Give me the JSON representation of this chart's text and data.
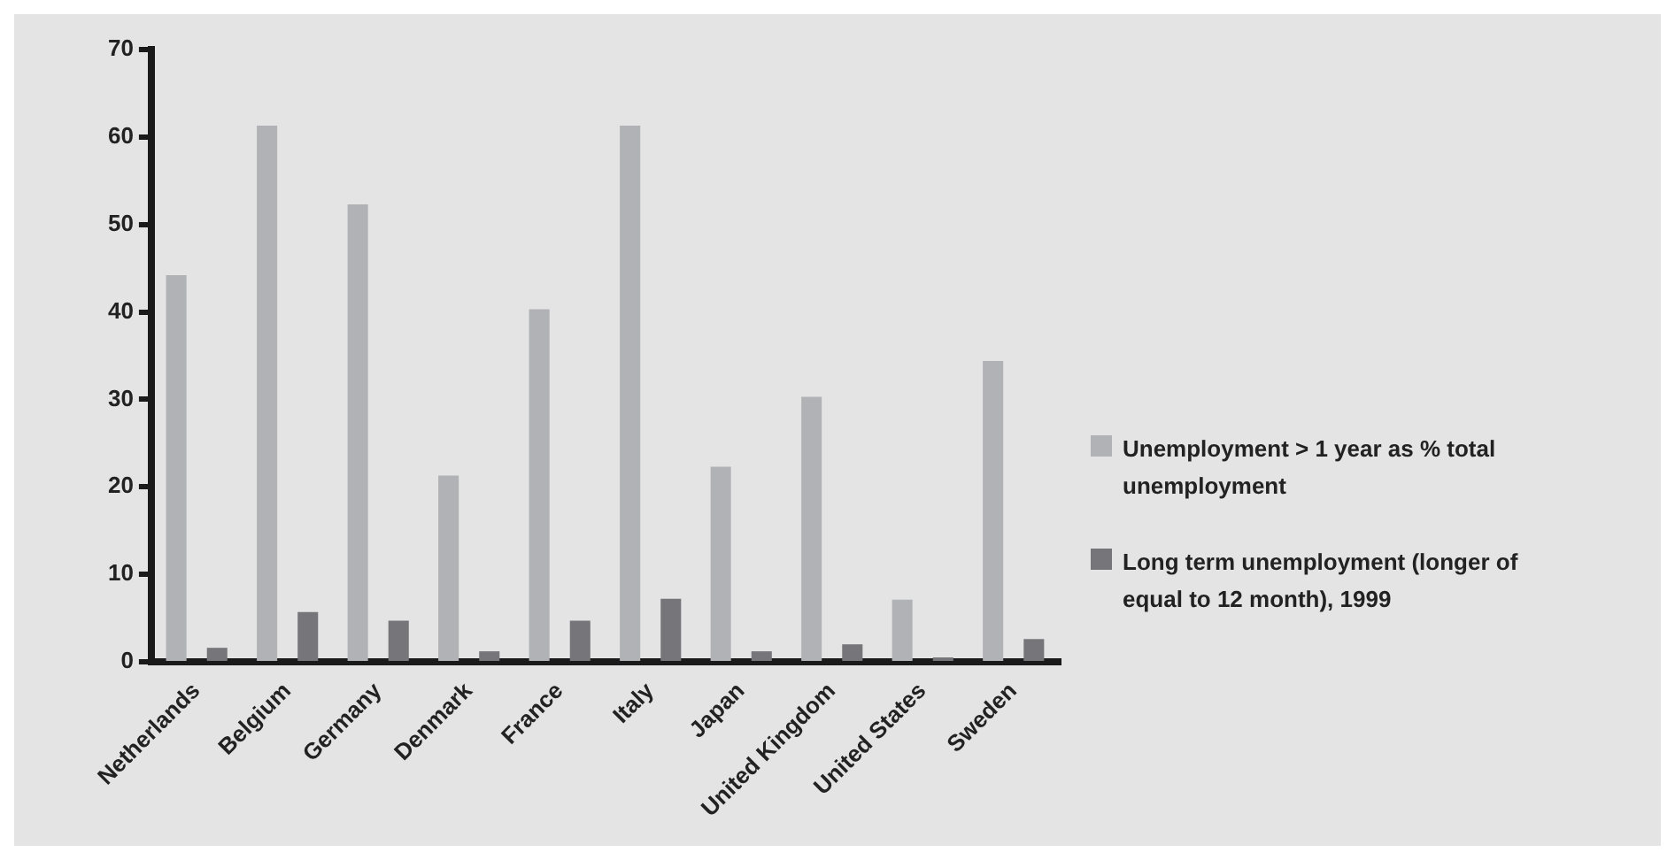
{
  "chart_data": {
    "type": "bar",
    "categories": [
      "Netherlands",
      "Belgium",
      "Germany",
      "Denmark",
      "France",
      "Italy",
      "Japan",
      "United Kingdom",
      "United States",
      "Sweden"
    ],
    "series": [
      {
        "name": "Unemployment > 1 year as % total unemployment",
        "color": "#b1b2b5",
        "values": [
          44.2,
          61.3,
          52.3,
          21.3,
          40.3,
          61.3,
          22.3,
          30.3,
          7.1,
          34.4
        ]
      },
      {
        "name": "Long term unemployment (longer of equal to 12 month), 1999",
        "color": "#76767a",
        "values": [
          1.6,
          5.7,
          4.7,
          1.2,
          4.7,
          7.2,
          1.2,
          2.0,
          0.5,
          2.6
        ]
      }
    ],
    "ylim": [
      0,
      70
    ],
    "yticks": [
      0,
      10,
      20,
      30,
      40,
      50,
      60,
      70
    ],
    "grid": false,
    "legend": "right"
  }
}
